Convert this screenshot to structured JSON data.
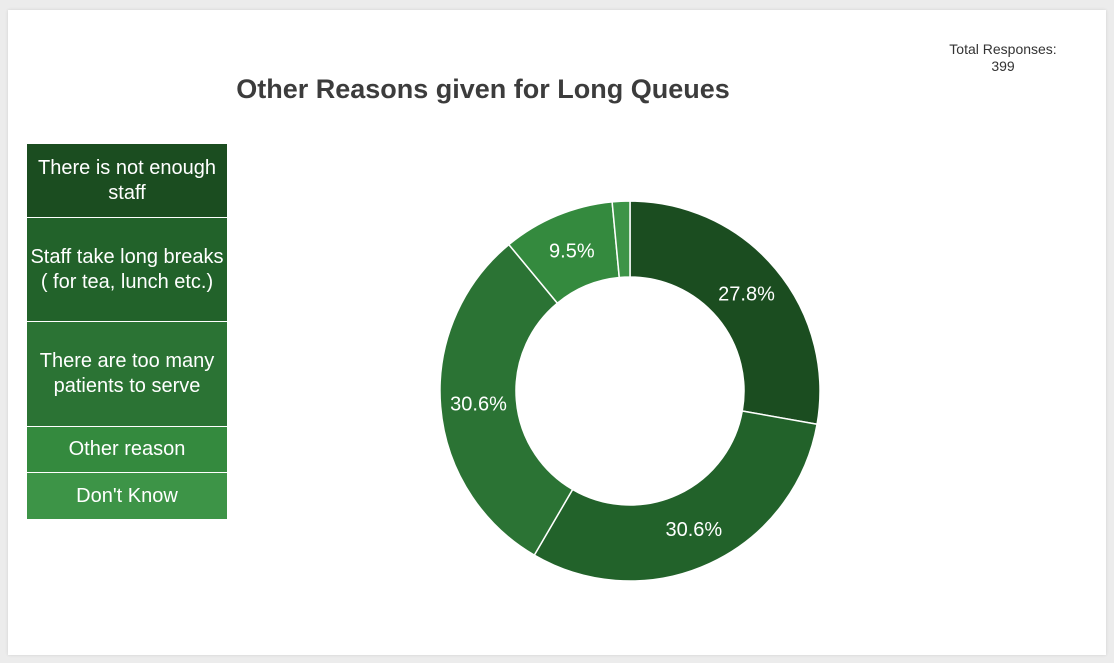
{
  "chart_data": {
    "type": "pie",
    "title": "Other Reasons given for Long Queues",
    "total_label": "Total Responses:",
    "total_value": "399",
    "categories": [
      "There is not enough staff",
      "Staff take long breaks ( for tea, lunch etc.)",
      "There are too many patients to serve",
      "Other reason",
      "Don't Know"
    ],
    "values": [
      27.8,
      30.6,
      30.6,
      9.5,
      1.5
    ],
    "labels": [
      "27.8%",
      "30.6%",
      "30.6%",
      "9.5%",
      ""
    ],
    "colors": [
      "#1b4d20",
      "#22622a",
      "#2b7334",
      "#348a3e",
      "#3d9447"
    ],
    "legend_position": "left"
  }
}
